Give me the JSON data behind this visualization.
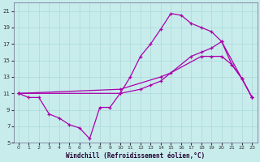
{
  "xlabel": "Windchill (Refroidissement éolien,°C)",
  "xlim": [
    -0.5,
    23.5
  ],
  "ylim": [
    5,
    22
  ],
  "xticks": [
    0,
    1,
    2,
    3,
    4,
    5,
    6,
    7,
    8,
    9,
    10,
    11,
    12,
    13,
    14,
    15,
    16,
    17,
    18,
    19,
    20,
    21,
    22,
    23
  ],
  "yticks": [
    5,
    7,
    9,
    11,
    13,
    15,
    17,
    19,
    21
  ],
  "grid_color": "#aad8d8",
  "bg_color": "#c8ecec",
  "line_color": "#aa00aa",
  "line1_x": [
    0,
    1,
    2,
    3,
    4,
    5,
    6,
    7,
    8,
    9,
    10,
    11,
    12,
    13,
    14,
    15,
    16,
    17,
    18,
    19,
    20,
    21,
    22,
    23
  ],
  "line1_y": [
    11,
    10.5,
    10.5,
    8.5,
    8,
    7.2,
    6.8,
    5.5,
    9.3,
    9.3,
    11,
    13,
    15.5,
    17,
    18.8,
    20.7,
    20.5,
    19.5,
    19,
    18.5,
    17.3,
    14.5,
    12.8,
    10.5
  ],
  "line2_x": [
    0,
    10,
    14,
    15,
    18,
    19,
    20,
    21,
    22,
    23
  ],
  "line2_y": [
    11,
    11.5,
    13,
    13.5,
    15.5,
    15.5,
    15.5,
    14.5,
    12.8,
    10.5
  ],
  "line3_x": [
    0,
    10,
    12,
    13,
    14,
    17,
    18,
    19,
    20,
    23
  ],
  "line3_y": [
    11,
    11,
    11.5,
    12,
    12.5,
    15.5,
    16,
    16.5,
    17.3,
    10.5
  ]
}
